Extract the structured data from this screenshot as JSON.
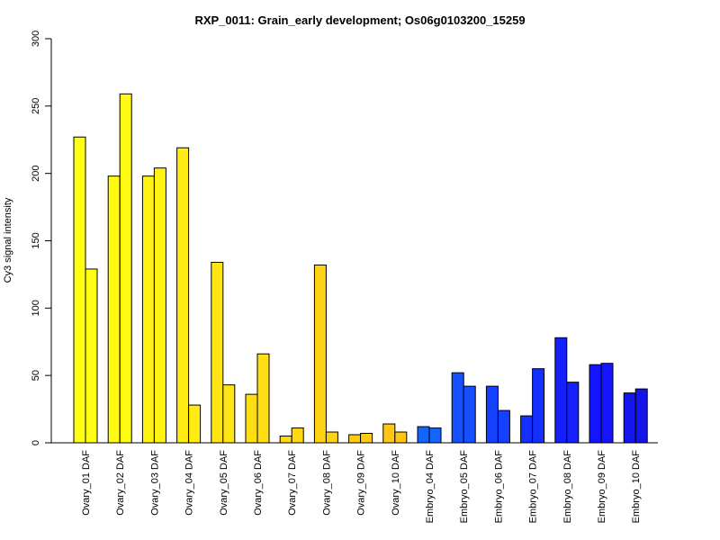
{
  "chart_data": {
    "type": "bar",
    "title": "RXP_0011: Grain_early development; Os06g0103200_15259",
    "ylabel": "Cy3 signal intensity",
    "xlabel": "",
    "ylim": [
      0,
      300
    ],
    "yticks": [
      0,
      50,
      100,
      150,
      200,
      250,
      300
    ],
    "grid": false,
    "legend": "none",
    "categories": [
      "Ovary_01 DAF",
      "Ovary_02 DAF",
      "Ovary_03 DAF",
      "Ovary_04 DAF",
      "Ovary_05 DAF",
      "Ovary_06 DAF",
      "Ovary_07 DAF",
      "Ovary_08 DAF",
      "Ovary_09 DAF",
      "Ovary_10 DAF",
      "Embryo_04 DAF",
      "Embryo_05 DAF",
      "Embryo_06 DAF",
      "Embryo_07 DAF",
      "Embryo_08 DAF",
      "Embryo_09 DAF",
      "Embryo_10 DAF"
    ],
    "colors": [
      "#FFFF14",
      "#FFFA14",
      "#FFF314",
      "#FFEC14",
      "#FFE514",
      "#FFDE14",
      "#FFD814",
      "#FFD214",
      "#FFCC14",
      "#FFC614",
      "#1464FF",
      "#1450FF",
      "#1440FF",
      "#1430FF",
      "#1420FF",
      "#1414FF",
      "#1414EC"
    ],
    "series": [
      {
        "values": [
          227,
          198,
          198,
          219,
          134,
          36,
          5,
          132,
          6,
          14,
          12,
          52,
          42,
          20,
          78,
          58,
          37
        ]
      },
      {
        "values": [
          129,
          259,
          204,
          28,
          43,
          66,
          11,
          8,
          7,
          8,
          11,
          42,
          24,
          55,
          45,
          59,
          40
        ]
      }
    ]
  }
}
